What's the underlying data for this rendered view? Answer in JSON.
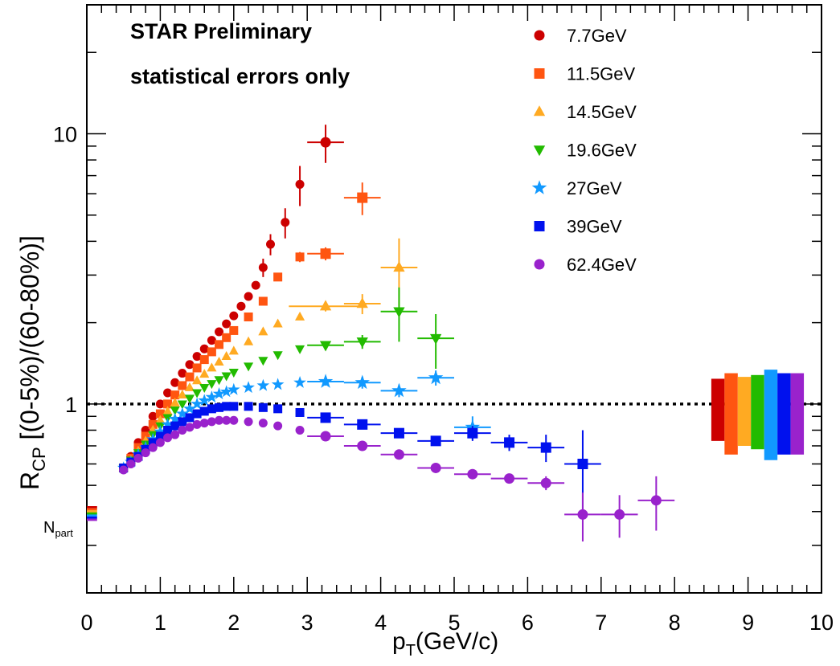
{
  "chart_data": {
    "type": "scatter",
    "title": "",
    "annotations": [
      "STAR Preliminary",
      "statistical errors only"
    ],
    "xlabel": {
      "main": "p",
      "sub": "T",
      "suffix": "(GeV/c)"
    },
    "ylabel": {
      "main": "R",
      "sub": "CP",
      "suffix": " [(0-5%)/(60-80%)]"
    },
    "xlim": [
      0,
      10
    ],
    "ylim": [
      0.2,
      30
    ],
    "yscale": "log",
    "xticks": [
      0,
      1,
      2,
      3,
      4,
      5,
      6,
      7,
      8,
      9,
      10
    ],
    "xtick_labels": [
      "0",
      "1",
      "2",
      "3",
      "4",
      "5",
      "6",
      "7",
      "8",
      "9",
      "10"
    ],
    "yticks": [
      1,
      10
    ],
    "ytick_labels": [
      "1",
      "10"
    ],
    "npart_label": {
      "main": "N",
      "sub": "part"
    },
    "reference_line": 1,
    "legend_position": "top-right",
    "series": [
      {
        "name": "7.7GeV",
        "color": "#cc0000",
        "marker": "circle",
        "x": [
          0.5,
          0.6,
          0.7,
          0.8,
          0.9,
          1.0,
          1.1,
          1.2,
          1.3,
          1.4,
          1.5,
          1.6,
          1.7,
          1.8,
          1.9,
          2.0,
          2.1,
          2.2,
          2.3,
          2.4,
          2.5,
          2.7,
          2.9,
          3.25
        ],
        "y": [
          0.58,
          0.64,
          0.72,
          0.8,
          0.9,
          1.0,
          1.1,
          1.2,
          1.3,
          1.4,
          1.5,
          1.6,
          1.72,
          1.85,
          1.98,
          2.12,
          2.3,
          2.5,
          2.75,
          3.2,
          3.9,
          4.7,
          6.5,
          9.3
        ],
        "yerr": [
          0,
          0,
          0,
          0,
          0,
          0,
          0,
          0,
          0,
          0,
          0,
          0,
          0,
          0,
          0,
          0,
          0,
          0,
          0,
          0.25,
          0.35,
          0.6,
          1.1,
          1.5
        ],
        "xerr": [
          0,
          0,
          0,
          0,
          0,
          0,
          0,
          0,
          0,
          0,
          0,
          0,
          0,
          0,
          0,
          0,
          0,
          0,
          0,
          0,
          0,
          0,
          0,
          0.25
        ]
      },
      {
        "name": "11.5GeV",
        "color": "#ff5511",
        "marker": "square",
        "x": [
          0.5,
          0.6,
          0.7,
          0.8,
          0.9,
          1.0,
          1.1,
          1.2,
          1.3,
          1.4,
          1.5,
          1.6,
          1.7,
          1.8,
          1.9,
          2.0,
          2.2,
          2.4,
          2.6,
          2.9,
          3.25,
          3.75
        ],
        "y": [
          0.58,
          0.63,
          0.69,
          0.76,
          0.84,
          0.92,
          1.0,
          1.08,
          1.17,
          1.26,
          1.36,
          1.46,
          1.56,
          1.66,
          1.76,
          1.87,
          2.1,
          2.4,
          2.95,
          3.5,
          3.6,
          5.8
        ],
        "yerr": [
          0,
          0,
          0,
          0,
          0,
          0,
          0,
          0,
          0,
          0,
          0,
          0,
          0,
          0,
          0,
          0,
          0,
          0,
          0,
          0.15,
          0.2,
          0.8
        ],
        "xerr": [
          0,
          0,
          0,
          0,
          0,
          0,
          0,
          0,
          0,
          0,
          0,
          0,
          0,
          0,
          0,
          0,
          0,
          0,
          0,
          0,
          0.25,
          0.25
        ]
      },
      {
        "name": "14.5GeV",
        "color": "#ffaa22",
        "marker": "triangle-up",
        "x": [
          0.5,
          0.6,
          0.7,
          0.8,
          0.9,
          1.0,
          1.1,
          1.2,
          1.3,
          1.4,
          1.5,
          1.6,
          1.7,
          1.8,
          1.9,
          2.0,
          2.2,
          2.4,
          2.6,
          2.9,
          3.25,
          3.75,
          4.25
        ],
        "y": [
          0.58,
          0.62,
          0.67,
          0.73,
          0.8,
          0.87,
          0.94,
          1.01,
          1.08,
          1.15,
          1.22,
          1.29,
          1.36,
          1.43,
          1.5,
          1.57,
          1.7,
          1.85,
          1.98,
          2.1,
          2.3,
          2.35,
          3.2
        ],
        "yerr": [
          0,
          0,
          0,
          0,
          0,
          0,
          0,
          0,
          0,
          0,
          0,
          0,
          0,
          0,
          0,
          0,
          0,
          0,
          0,
          0,
          0.1,
          0.2,
          0.9
        ],
        "xerr": [
          0,
          0,
          0,
          0,
          0,
          0,
          0,
          0,
          0,
          0,
          0,
          0,
          0,
          0,
          0,
          0,
          0,
          0,
          0,
          0,
          0.5,
          0.25,
          0.25
        ]
      },
      {
        "name": "19.6GeV",
        "color": "#22bb00",
        "marker": "triangle-down",
        "x": [
          0.5,
          0.6,
          0.7,
          0.8,
          0.9,
          1.0,
          1.1,
          1.2,
          1.3,
          1.4,
          1.5,
          1.6,
          1.7,
          1.8,
          1.9,
          2.0,
          2.2,
          2.4,
          2.6,
          2.9,
          3.25,
          3.75,
          4.25,
          4.75
        ],
        "y": [
          0.58,
          0.62,
          0.66,
          0.71,
          0.77,
          0.83,
          0.89,
          0.95,
          1.0,
          1.05,
          1.1,
          1.15,
          1.19,
          1.23,
          1.27,
          1.31,
          1.38,
          1.45,
          1.52,
          1.6,
          1.65,
          1.7,
          2.2,
          1.75
        ],
        "yerr": [
          0,
          0,
          0,
          0,
          0,
          0,
          0,
          0,
          0,
          0,
          0,
          0,
          0,
          0,
          0,
          0,
          0,
          0,
          0,
          0,
          0.06,
          0.1,
          0.5,
          0.4
        ],
        "xerr": [
          0,
          0,
          0,
          0,
          0,
          0,
          0,
          0,
          0,
          0,
          0,
          0,
          0,
          0,
          0,
          0,
          0,
          0,
          0,
          0,
          0.25,
          0.25,
          0.25,
          0.25
        ]
      },
      {
        "name": "27GeV",
        "color": "#1199ff",
        "marker": "star",
        "x": [
          0.5,
          0.6,
          0.7,
          0.8,
          0.9,
          1.0,
          1.1,
          1.2,
          1.3,
          1.4,
          1.5,
          1.6,
          1.7,
          1.8,
          1.9,
          2.0,
          2.2,
          2.4,
          2.6,
          2.9,
          3.25,
          3.75,
          4.25,
          4.75,
          5.25
        ],
        "y": [
          0.58,
          0.61,
          0.65,
          0.69,
          0.74,
          0.79,
          0.84,
          0.88,
          0.92,
          0.96,
          1.0,
          1.03,
          1.06,
          1.09,
          1.11,
          1.13,
          1.15,
          1.17,
          1.18,
          1.2,
          1.21,
          1.2,
          1.12,
          1.25,
          0.82
        ],
        "yerr": [
          0,
          0,
          0,
          0,
          0,
          0,
          0,
          0,
          0,
          0,
          0,
          0,
          0,
          0,
          0,
          0,
          0,
          0,
          0,
          0,
          0.04,
          0.06,
          0.06,
          0.08,
          0.08
        ],
        "xerr": [
          0,
          0,
          0,
          0,
          0,
          0,
          0,
          0,
          0,
          0,
          0,
          0,
          0,
          0,
          0,
          0,
          0,
          0,
          0,
          0,
          0.25,
          0.25,
          0.25,
          0.25,
          0.25
        ]
      },
      {
        "name": "39GeV",
        "color": "#0011ee",
        "marker": "square",
        "x": [
          0.5,
          0.6,
          0.7,
          0.8,
          0.9,
          1.0,
          1.1,
          1.2,
          1.3,
          1.4,
          1.5,
          1.6,
          1.7,
          1.8,
          1.9,
          2.0,
          2.2,
          2.4,
          2.6,
          2.9,
          3.25,
          3.75,
          4.25,
          4.75,
          5.25,
          5.75,
          6.25,
          6.75
        ],
        "y": [
          0.58,
          0.61,
          0.64,
          0.68,
          0.72,
          0.76,
          0.8,
          0.83,
          0.86,
          0.89,
          0.92,
          0.94,
          0.96,
          0.97,
          0.98,
          0.98,
          0.98,
          0.97,
          0.96,
          0.93,
          0.89,
          0.84,
          0.78,
          0.73,
          0.78,
          0.72,
          0.69,
          0.6
        ],
        "yerr": [
          0,
          0,
          0,
          0,
          0,
          0,
          0,
          0,
          0,
          0,
          0,
          0,
          0,
          0,
          0,
          0,
          0,
          0,
          0,
          0,
          0.02,
          0.02,
          0.03,
          0.03,
          0.05,
          0.05,
          0.08,
          0.2
        ],
        "xerr": [
          0,
          0,
          0,
          0,
          0,
          0,
          0,
          0,
          0,
          0,
          0,
          0,
          0,
          0,
          0,
          0,
          0,
          0,
          0,
          0,
          0.25,
          0.25,
          0.25,
          0.25,
          0.25,
          0.25,
          0.25,
          0.25
        ]
      },
      {
        "name": "62.4GeV",
        "color": "#9922cc",
        "marker": "circle",
        "x": [
          0.5,
          0.6,
          0.7,
          0.8,
          0.9,
          1.0,
          1.1,
          1.2,
          1.3,
          1.4,
          1.5,
          1.6,
          1.7,
          1.8,
          1.9,
          2.0,
          2.2,
          2.4,
          2.6,
          2.9,
          3.25,
          3.75,
          4.25,
          4.75,
          5.25,
          5.75,
          6.25,
          6.75,
          7.25,
          7.75
        ],
        "y": [
          0.57,
          0.6,
          0.63,
          0.66,
          0.69,
          0.72,
          0.75,
          0.77,
          0.8,
          0.82,
          0.84,
          0.85,
          0.86,
          0.87,
          0.87,
          0.87,
          0.86,
          0.85,
          0.83,
          0.8,
          0.76,
          0.7,
          0.65,
          0.58,
          0.55,
          0.53,
          0.51,
          0.39,
          0.39,
          0.44
        ],
        "yerr": [
          0,
          0,
          0,
          0,
          0,
          0,
          0,
          0,
          0,
          0,
          0,
          0,
          0,
          0,
          0,
          0,
          0,
          0,
          0,
          0,
          0.02,
          0.02,
          0.02,
          0.02,
          0.02,
          0.02,
          0.03,
          0.08,
          0.07,
          0.1
        ],
        "xerr": [
          0,
          0,
          0,
          0,
          0,
          0,
          0,
          0,
          0,
          0,
          0,
          0,
          0,
          0,
          0,
          0,
          0,
          0,
          0,
          0,
          0.25,
          0.25,
          0.25,
          0.25,
          0.25,
          0.25,
          0.25,
          0.25,
          0.25,
          0.25
        ]
      }
    ],
    "systematic_boxes": [
      {
        "color": "#cc0000",
        "low": 0.73,
        "high": 1.24
      },
      {
        "color": "#ff5511",
        "low": 0.65,
        "high": 1.3
      },
      {
        "color": "#ffaa22",
        "low": 0.7,
        "high": 1.26
      },
      {
        "color": "#22bb00",
        "low": 0.68,
        "high": 1.28
      },
      {
        "color": "#1199ff",
        "low": 0.62,
        "high": 1.34
      },
      {
        "color": "#0011ee",
        "low": 0.65,
        "high": 1.3
      },
      {
        "color": "#9922cc",
        "low": 0.65,
        "high": 1.3
      }
    ],
    "npart_boxes": [
      "#cc0000",
      "#ff5511",
      "#ffaa22",
      "#22bb00",
      "#1199ff",
      "#0011ee",
      "#9922cc"
    ]
  }
}
